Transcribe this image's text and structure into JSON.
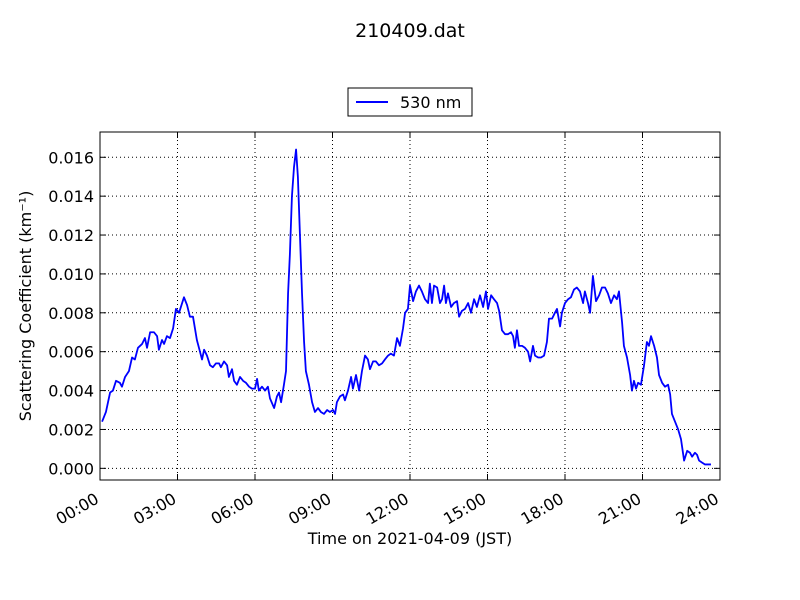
{
  "chart_data": {
    "type": "line",
    "title": "210409.dat",
    "xlabel": "Time on 2021-04-09 (JST)",
    "ylabel": "Scattering Coefficient (km⁻¹)",
    "x": [
      0.08,
      0.23,
      0.39,
      0.5,
      0.62,
      0.77,
      0.85,
      0.97,
      1.12,
      1.24,
      1.35,
      1.47,
      1.63,
      1.74,
      1.82,
      1.94,
      2.09,
      2.21,
      2.28,
      2.4,
      2.48,
      2.59,
      2.71,
      2.83,
      2.94,
      3.06,
      3.25,
      3.37,
      3.48,
      3.6,
      3.75,
      3.87,
      3.95,
      4.03,
      4.14,
      4.26,
      4.37,
      4.49,
      4.61,
      4.68,
      4.8,
      4.92,
      4.99,
      5.11,
      5.19,
      5.3,
      5.42,
      5.54,
      5.65,
      5.77,
      5.88,
      6.0,
      6.08,
      6.15,
      6.27,
      6.39,
      6.5,
      6.58,
      6.74,
      6.85,
      6.93,
      7.01,
      7.12,
      7.2,
      7.28,
      7.35,
      7.43,
      7.51,
      7.59,
      7.66,
      7.74,
      7.82,
      7.9,
      7.97,
      8.09,
      8.21,
      8.32,
      8.44,
      8.55,
      8.67,
      8.79,
      8.9,
      9.02,
      9.1,
      9.17,
      9.29,
      9.41,
      9.48,
      9.6,
      9.72,
      9.79,
      9.91,
      10.03,
      10.14,
      10.26,
      10.37,
      10.45,
      10.57,
      10.68,
      10.8,
      10.92,
      11.03,
      11.15,
      11.26,
      11.38,
      11.5,
      11.61,
      11.73,
      11.81,
      11.92,
      12.0,
      12.12,
      12.23,
      12.35,
      12.46,
      12.58,
      12.7,
      12.77,
      12.85,
      12.93,
      13.05,
      13.16,
      13.24,
      13.32,
      13.39,
      13.47,
      13.59,
      13.7,
      13.82,
      13.9,
      14.01,
      14.13,
      14.25,
      14.36,
      14.48,
      14.59,
      14.71,
      14.83,
      14.94,
      15.02,
      15.14,
      15.25,
      15.37,
      15.45,
      15.56,
      15.68,
      15.79,
      15.91,
      15.99,
      16.06,
      16.14,
      16.22,
      16.34,
      16.45,
      16.57,
      16.65,
      16.76,
      16.84,
      16.96,
      17.07,
      17.19,
      17.3,
      17.38,
      17.5,
      17.61,
      17.69,
      17.81,
      17.88,
      18.0,
      18.12,
      18.23,
      18.35,
      18.46,
      18.58,
      18.7,
      18.77,
      18.89,
      18.97,
      19.08,
      19.2,
      19.32,
      19.43,
      19.55,
      19.66,
      19.78,
      19.9,
      20.01,
      20.09,
      20.21,
      20.28,
      20.4,
      20.52,
      20.59,
      20.67,
      20.75,
      20.83,
      20.94,
      21.06,
      21.17,
      21.25,
      21.33,
      21.45,
      21.56,
      21.64,
      21.76,
      21.87,
      21.99,
      22.07,
      22.14,
      22.26,
      22.38,
      22.49,
      22.61,
      22.73,
      22.84,
      22.92,
      23.03,
      23.11,
      23.19,
      23.3,
      23.42,
      23.54,
      23.65
    ],
    "series": [
      {
        "name": "530 nm",
        "color": "#0000ff",
        "values": [
          0.0024,
          0.0029,
          0.0039,
          0.004,
          0.0045,
          0.0044,
          0.0042,
          0.0047,
          0.005,
          0.0057,
          0.0056,
          0.0062,
          0.0064,
          0.0067,
          0.0062,
          0.007,
          0.007,
          0.0068,
          0.0061,
          0.0066,
          0.0064,
          0.0068,
          0.0067,
          0.0072,
          0.0082,
          0.008,
          0.0088,
          0.0084,
          0.0078,
          0.0078,
          0.0066,
          0.006,
          0.0056,
          0.0061,
          0.0058,
          0.0053,
          0.0052,
          0.0054,
          0.0054,
          0.0052,
          0.0055,
          0.0053,
          0.0047,
          0.0051,
          0.0045,
          0.0043,
          0.0047,
          0.0045,
          0.0044,
          0.0042,
          0.0041,
          0.0041,
          0.0046,
          0.004,
          0.0042,
          0.004,
          0.0042,
          0.0036,
          0.0031,
          0.0037,
          0.0039,
          0.0034,
          0.0043,
          0.005,
          0.009,
          0.011,
          0.014,
          0.0155,
          0.0164,
          0.015,
          0.012,
          0.009,
          0.0065,
          0.005,
          0.0043,
          0.0034,
          0.0029,
          0.0031,
          0.0029,
          0.0028,
          0.003,
          0.0029,
          0.003,
          0.0028,
          0.0034,
          0.0037,
          0.0038,
          0.0035,
          0.004,
          0.0047,
          0.0041,
          0.0048,
          0.004,
          0.005,
          0.0058,
          0.0056,
          0.0051,
          0.0055,
          0.0055,
          0.0053,
          0.0054,
          0.0056,
          0.0058,
          0.0059,
          0.0058,
          0.0067,
          0.0063,
          0.0072,
          0.008,
          0.0082,
          0.0094,
          0.0086,
          0.0091,
          0.0094,
          0.0091,
          0.0087,
          0.0085,
          0.0095,
          0.0085,
          0.0094,
          0.0093,
          0.0085,
          0.0087,
          0.0094,
          0.0085,
          0.009,
          0.0083,
          0.0085,
          0.0086,
          0.0078,
          0.0081,
          0.0082,
          0.0085,
          0.008,
          0.0087,
          0.0083,
          0.0089,
          0.0083,
          0.0091,
          0.0082,
          0.0089,
          0.0087,
          0.0085,
          0.0081,
          0.0071,
          0.0069,
          0.0069,
          0.007,
          0.0068,
          0.0062,
          0.0071,
          0.0063,
          0.0063,
          0.0062,
          0.006,
          0.0055,
          0.0063,
          0.0058,
          0.0057,
          0.0057,
          0.0058,
          0.0065,
          0.0077,
          0.0077,
          0.008,
          0.0082,
          0.0073,
          0.008,
          0.0085,
          0.0087,
          0.0088,
          0.0092,
          0.0093,
          0.0091,
          0.0085,
          0.0091,
          0.0085,
          0.008,
          0.0099,
          0.0086,
          0.0089,
          0.0093,
          0.0093,
          0.009,
          0.0085,
          0.0089,
          0.0087,
          0.0091,
          0.0075,
          0.0063,
          0.0057,
          0.0048,
          0.004,
          0.0045,
          0.0041,
          0.0044,
          0.0043,
          0.0053,
          0.0065,
          0.0063,
          0.0068,
          0.0063,
          0.0057,
          0.0048,
          0.0044,
          0.0042,
          0.0043,
          0.0038,
          0.0028,
          0.0024,
          0.002,
          0.0015,
          0.0004,
          0.0009,
          0.0008,
          0.0006,
          0.0008,
          0.0007,
          0.0004,
          0.0003,
          0.0002,
          0.0002,
          0.0002
        ]
      }
    ],
    "xlim": [
      0,
      24
    ],
    "xticks": [
      {
        "value": 0,
        "label": "00:00"
      },
      {
        "value": 3,
        "label": "03:00"
      },
      {
        "value": 6,
        "label": "06:00"
      },
      {
        "value": 9,
        "label": "09:00"
      },
      {
        "value": 12,
        "label": "12:00"
      },
      {
        "value": 15,
        "label": "15:00"
      },
      {
        "value": 18,
        "label": "18:00"
      },
      {
        "value": 21,
        "label": "21:00"
      },
      {
        "value": 24,
        "label": "24:00"
      }
    ],
    "ylim": [
      -0.0006,
      0.0173
    ],
    "yticks": [
      {
        "value": 0,
        "label": "0.000"
      },
      0.002,
      0.004,
      0.006,
      0.008,
      {
        "value": 0.01,
        "label": "0.010"
      },
      0.012,
      0.014,
      0.016
    ],
    "grid": true,
    "legend": "upper center"
  }
}
